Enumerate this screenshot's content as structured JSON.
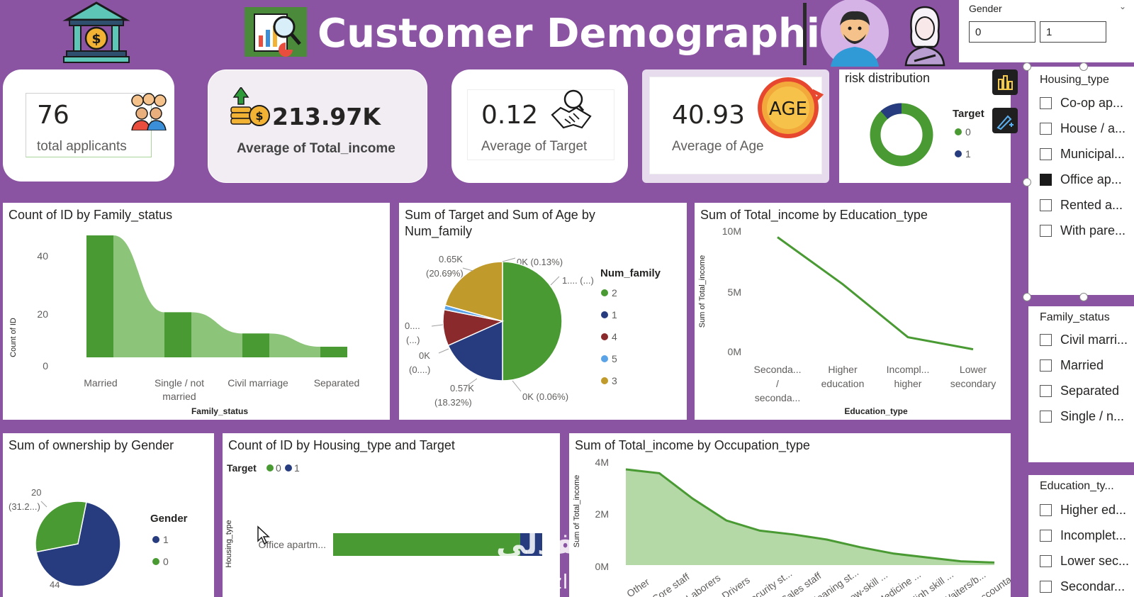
{
  "header": {
    "title": "Customer Demographic"
  },
  "gender_slicer": {
    "label": "Gender",
    "values": [
      "0",
      "1"
    ]
  },
  "kpis": {
    "applicants": {
      "value": "76",
      "label": "total applicants"
    },
    "income": {
      "value": "213.97K",
      "label": "Average of Total_income"
    },
    "target": {
      "value": "0.12",
      "label": "Average of Target"
    },
    "age": {
      "value": "40.93",
      "label": "Average of Age",
      "badge": "AGE"
    }
  },
  "risk": {
    "title": "risk distribution",
    "legend_title": "Target",
    "legend": [
      "0",
      "1"
    ]
  },
  "housing_slicer": {
    "title": "Housing_type",
    "items": [
      "Co-op ap...",
      "House / a...",
      "Municipal...",
      "Office ap...",
      "Rented a...",
      "With pare..."
    ],
    "selected_index": 3
  },
  "family_slicer": {
    "title": "Family_status",
    "items": [
      "Civil marri...",
      "Married",
      "Separated",
      "Single / n..."
    ]
  },
  "education_slicer": {
    "title": "Education_ty...",
    "items": [
      "Higher ed...",
      "Incomplet...",
      "Lower sec...",
      "Secondar..."
    ]
  },
  "colors": {
    "green": "#4a9a34",
    "navy": "#263c7e",
    "red": "#8a2a2c",
    "lightblue": "#5aa3e6",
    "gold": "#c19a2c",
    "purple": "#8a54a3"
  },
  "watermark": {
    "arabic": "نفذلي",
    "latin": "nafezly.com"
  },
  "chart_data": [
    {
      "id": "family",
      "type": "bar",
      "title": "Count of ID by Family_status",
      "categories": [
        "Married",
        "Single / not married",
        "Civil marriage",
        "Separated"
      ],
      "values": [
        46,
        17,
        9,
        4
      ],
      "xlabel": "Family_status",
      "ylabel": "Count of ID",
      "ylim": [
        0,
        46
      ],
      "yticks": [
        "0",
        "20",
        "40"
      ],
      "xticks": [
        [
          "Married"
        ],
        [
          "Single / not",
          "married"
        ],
        [
          "Civil marriage"
        ],
        [
          "Separated"
        ]
      ]
    },
    {
      "id": "numfamily",
      "type": "pie",
      "title": "Sum of Target and Sum of Age by Num_family",
      "legend_title": "Num_family",
      "legend": [
        "2",
        "1",
        "4",
        "5",
        "3"
      ],
      "values": [
        50,
        18.32,
        9.8,
        1.2,
        20.69
      ],
      "labels": {
        "top": "0K (0.13%)",
        "topright": "1.... (...)",
        "bottomright": "0K (0.06%)",
        "bottom": [
          "0.57K",
          "(18.32%)"
        ],
        "left1": [
          "0....",
          "(...)"
        ],
        "left2": [
          "0K",
          "(0....)"
        ],
        "topleft": [
          "0.65K",
          "(20.69%)"
        ]
      }
    },
    {
      "id": "education",
      "type": "line",
      "title": "Sum of Total_income by Education_type",
      "categories": [
        "Seconda... / seconda...",
        "Higher education",
        "Incompl... higher",
        "Lower secondary"
      ],
      "xticks": [
        [
          "Seconda...",
          "/",
          "seconda..."
        ],
        [
          "Higher",
          "education"
        ],
        [
          "Incompl...",
          "higher"
        ],
        [
          "Lower",
          "secondary"
        ]
      ],
      "values": [
        9.5,
        5.6,
        1.2,
        0.2
      ],
      "ylim": [
        0,
        10
      ],
      "yticks": [
        "0M",
        "5M",
        "10M"
      ],
      "xlabel": "Education_type",
      "ylabel": "Sum of Total_income"
    },
    {
      "id": "ownership",
      "type": "pie",
      "title": "Sum of ownership by Gender",
      "legend_title": "Gender",
      "legend": [
        "1",
        "0"
      ],
      "values": [
        44,
        20
      ],
      "labels": {
        "top": [
          "20",
          "(31.2...)"
        ],
        "bottom": "44"
      }
    },
    {
      "id": "housing",
      "type": "bar",
      "title": "Count of ID by Housing_type and Target",
      "legend_title": "Target",
      "legend": [
        "0",
        "1"
      ],
      "categories": [
        "Office apartm..."
      ],
      "series": [
        {
          "name": "0",
          "values": [
            34
          ]
        },
        {
          "name": "1",
          "values": [
            4
          ]
        }
      ],
      "ylabel": "Housing_type"
    },
    {
      "id": "occupation",
      "type": "area",
      "title": "Sum of Total_income by Occupation_type",
      "values": [
        3.75,
        3.6,
        2.6,
        1.75,
        1.35,
        1.2,
        1.0,
        0.7,
        0.45,
        0.3,
        0.15,
        0.1
      ],
      "ylim": [
        0,
        4
      ],
      "yticks": [
        "0M",
        "2M",
        "4M"
      ],
      "ylabel": "Sum of Total_income",
      "xticks": [
        "Other",
        "Core staff",
        "Laborers",
        "Drivers",
        "Security st...",
        "Sales staff",
        "Cleaning st...",
        "Low-skill ...",
        "Medicine ...",
        "High skill ...",
        "Waiters/b...",
        "Accounta..."
      ]
    }
  ]
}
